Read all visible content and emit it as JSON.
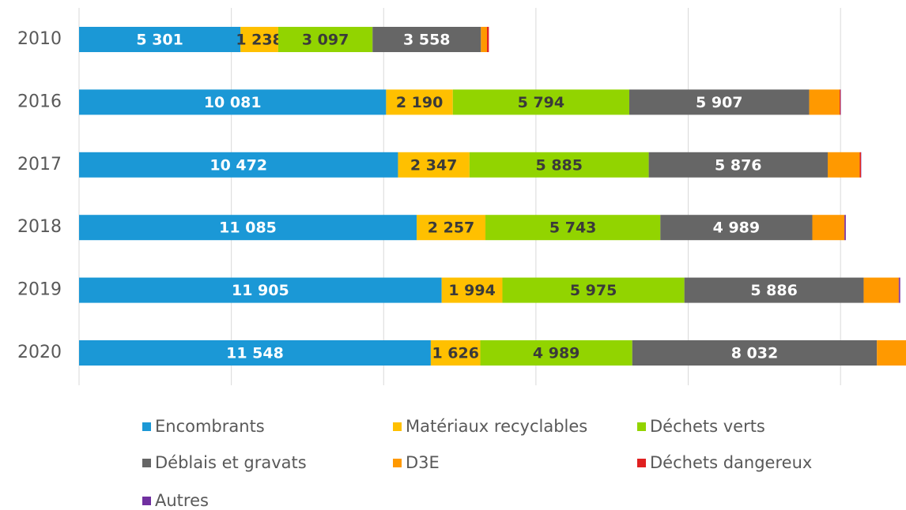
{
  "chart_data": {
    "type": "stacked_barh",
    "categories": [
      "2010",
      "2016",
      "2017",
      "2018",
      "2019",
      "2020"
    ],
    "series": [
      {
        "name": "Encombrants",
        "color": "#1b98d6",
        "values": [
          5301,
          10081,
          10472,
          11085,
          11905,
          11548
        ],
        "value_labels": [
          "5 301",
          "10 081",
          "10 472",
          "11 085",
          "11 905",
          "11 548"
        ]
      },
      {
        "name": "Matériaux recyclables",
        "color": "#ffc000",
        "values": [
          1238,
          2190,
          2347,
          2257,
          1994,
          1626
        ],
        "value_labels": [
          "1 238",
          "2 190",
          "2 347",
          "2 257",
          "1 994",
          "1 626"
        ]
      },
      {
        "name": "Déchets verts",
        "color": "#92d400",
        "values": [
          3097,
          5794,
          5885,
          5743,
          5975,
          4989
        ],
        "value_labels": [
          "3 097",
          "5 794",
          "5 885",
          "5 743",
          "5 975",
          "4 989"
        ]
      },
      {
        "name": "Déblais et gravats",
        "color": "#666666",
        "values": [
          3558,
          5907,
          5876,
          4989,
          5886,
          8032
        ],
        "value_labels": [
          "3 558",
          "5 907",
          "5 876",
          "4 989",
          "5 886",
          "8 032"
        ]
      },
      {
        "name": "D3E",
        "color": "#ff9900",
        "values": [
          200,
          1000,
          1050,
          1050,
          1150,
          1000
        ]
      },
      {
        "name": "Déchets dangereux",
        "color": "#e02020",
        "values": [
          60,
          30,
          40,
          10,
          10,
          10
        ]
      },
      {
        "name": "Autres",
        "color": "#7030a0",
        "values": [
          0,
          10,
          10,
          40,
          40,
          10
        ]
      }
    ],
    "xlim": [
      0,
      27150
    ],
    "xticks": [
      0,
      5000,
      10000,
      15000,
      20000,
      25000
    ],
    "grid": true
  }
}
